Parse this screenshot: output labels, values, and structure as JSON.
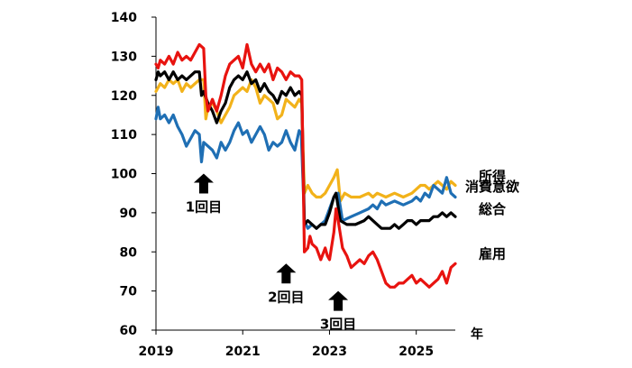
{
  "chart_data": {
    "type": "line",
    "title": "",
    "xlabel": "年",
    "ylabel": "",
    "xlim": [
      2019.0,
      2025.9
    ],
    "ylim": [
      60,
      140
    ],
    "y_ticks": [
      60,
      70,
      80,
      90,
      100,
      110,
      120,
      130,
      140
    ],
    "x_ticks": [
      {
        "value": 2019,
        "label": "2019"
      },
      {
        "value": 2021,
        "label": "2021"
      },
      {
        "value": 2023,
        "label": "2023"
      },
      {
        "value": 2025,
        "label": "2025"
      }
    ],
    "grid": false,
    "legend": "right (direct labels)",
    "series": [
      {
        "name": "所得",
        "color": "#f2b21a",
        "points": [
          [
            2019.0,
            121
          ],
          [
            2019.1,
            123
          ],
          [
            2019.2,
            122
          ],
          [
            2019.3,
            124
          ],
          [
            2019.4,
            123
          ],
          [
            2019.5,
            124
          ],
          [
            2019.6,
            121
          ],
          [
            2019.7,
            123
          ],
          [
            2019.8,
            122
          ],
          [
            2019.9,
            123
          ],
          [
            2020.0,
            124
          ],
          [
            2020.1,
            124
          ],
          [
            2020.15,
            114
          ],
          [
            2020.2,
            117
          ],
          [
            2020.3,
            118
          ],
          [
            2020.4,
            116
          ],
          [
            2020.5,
            113
          ],
          [
            2020.6,
            115
          ],
          [
            2020.7,
            117
          ],
          [
            2020.8,
            120
          ],
          [
            2020.9,
            121
          ],
          [
            2021.0,
            122
          ],
          [
            2021.1,
            121
          ],
          [
            2021.2,
            124
          ],
          [
            2021.3,
            122
          ],
          [
            2021.4,
            118
          ],
          [
            2021.5,
            120
          ],
          [
            2021.6,
            119
          ],
          [
            2021.7,
            118
          ],
          [
            2021.8,
            114
          ],
          [
            2021.9,
            115
          ],
          [
            2022.0,
            119
          ],
          [
            2022.1,
            118
          ],
          [
            2022.2,
            117
          ],
          [
            2022.3,
            119
          ],
          [
            2022.36,
            118
          ],
          [
            2022.42,
            95
          ],
          [
            2022.5,
            97
          ],
          [
            2022.6,
            95
          ],
          [
            2022.7,
            94
          ],
          [
            2022.8,
            94
          ],
          [
            2022.9,
            95
          ],
          [
            2023.0,
            97
          ],
          [
            2023.1,
            99
          ],
          [
            2023.18,
            101
          ],
          [
            2023.25,
            93
          ],
          [
            2023.35,
            95
          ],
          [
            2023.5,
            94
          ],
          [
            2023.7,
            94
          ],
          [
            2023.9,
            95
          ],
          [
            2024.0,
            94
          ],
          [
            2024.1,
            95
          ],
          [
            2024.3,
            94
          ],
          [
            2024.5,
            95
          ],
          [
            2024.7,
            94
          ],
          [
            2024.9,
            95
          ],
          [
            2025.0,
            96
          ],
          [
            2025.1,
            97
          ],
          [
            2025.2,
            97
          ],
          [
            2025.3,
            96
          ],
          [
            2025.4,
            97
          ],
          [
            2025.5,
            98
          ],
          [
            2025.6,
            97
          ],
          [
            2025.7,
            96
          ],
          [
            2025.8,
            98
          ],
          [
            2025.9,
            97
          ]
        ]
      },
      {
        "name": "消費意欲",
        "color": "#1f6fb4",
        "points": [
          [
            2019.0,
            114
          ],
          [
            2019.05,
            117
          ],
          [
            2019.1,
            114
          ],
          [
            2019.2,
            115
          ],
          [
            2019.3,
            113
          ],
          [
            2019.4,
            115
          ],
          [
            2019.5,
            112
          ],
          [
            2019.6,
            110
          ],
          [
            2019.7,
            107
          ],
          [
            2019.8,
            109
          ],
          [
            2019.9,
            111
          ],
          [
            2020.0,
            110
          ],
          [
            2020.05,
            103
          ],
          [
            2020.1,
            108
          ],
          [
            2020.2,
            107
          ],
          [
            2020.3,
            106
          ],
          [
            2020.4,
            104
          ],
          [
            2020.5,
            108
          ],
          [
            2020.6,
            106
          ],
          [
            2020.7,
            108
          ],
          [
            2020.8,
            111
          ],
          [
            2020.9,
            113
          ],
          [
            2021.0,
            110
          ],
          [
            2021.1,
            111
          ],
          [
            2021.2,
            108
          ],
          [
            2021.3,
            110
          ],
          [
            2021.4,
            112
          ],
          [
            2021.5,
            110
          ],
          [
            2021.6,
            106
          ],
          [
            2021.7,
            108
          ],
          [
            2021.8,
            107
          ],
          [
            2021.9,
            108
          ],
          [
            2022.0,
            111
          ],
          [
            2022.1,
            108
          ],
          [
            2022.2,
            106
          ],
          [
            2022.3,
            111
          ],
          [
            2022.35,
            110
          ],
          [
            2022.42,
            88
          ],
          [
            2022.5,
            86
          ],
          [
            2022.6,
            87
          ],
          [
            2022.7,
            86
          ],
          [
            2022.8,
            87
          ],
          [
            2022.9,
            88
          ],
          [
            2023.0,
            91
          ],
          [
            2023.1,
            94
          ],
          [
            2023.2,
            95
          ],
          [
            2023.3,
            88
          ],
          [
            2023.5,
            89
          ],
          [
            2023.7,
            90
          ],
          [
            2023.9,
            91
          ],
          [
            2024.0,
            92
          ],
          [
            2024.1,
            91
          ],
          [
            2024.2,
            93
          ],
          [
            2024.3,
            92
          ],
          [
            2024.5,
            93
          ],
          [
            2024.7,
            92
          ],
          [
            2024.9,
            93
          ],
          [
            2025.0,
            94
          ],
          [
            2025.1,
            93
          ],
          [
            2025.2,
            95
          ],
          [
            2025.3,
            94
          ],
          [
            2025.4,
            97
          ],
          [
            2025.5,
            96
          ],
          [
            2025.6,
            95
          ],
          [
            2025.7,
            99
          ],
          [
            2025.8,
            95
          ],
          [
            2025.9,
            94
          ]
        ]
      },
      {
        "name": "総合",
        "color": "#000000",
        "points": [
          [
            2019.0,
            124
          ],
          [
            2019.05,
            126
          ],
          [
            2019.1,
            125
          ],
          [
            2019.2,
            126
          ],
          [
            2019.3,
            124
          ],
          [
            2019.4,
            126
          ],
          [
            2019.5,
            124
          ],
          [
            2019.6,
            125
          ],
          [
            2019.7,
            124
          ],
          [
            2019.8,
            125
          ],
          [
            2019.9,
            126
          ],
          [
            2020.0,
            126
          ],
          [
            2020.05,
            120
          ],
          [
            2020.1,
            121
          ],
          [
            2020.2,
            118
          ],
          [
            2020.3,
            116
          ],
          [
            2020.4,
            113
          ],
          [
            2020.5,
            116
          ],
          [
            2020.6,
            118
          ],
          [
            2020.7,
            122
          ],
          [
            2020.8,
            124
          ],
          [
            2020.9,
            125
          ],
          [
            2021.0,
            124
          ],
          [
            2021.1,
            126
          ],
          [
            2021.2,
            123
          ],
          [
            2021.3,
            124
          ],
          [
            2021.4,
            121
          ],
          [
            2021.5,
            123
          ],
          [
            2021.6,
            121
          ],
          [
            2021.7,
            120
          ],
          [
            2021.8,
            118
          ],
          [
            2021.9,
            121
          ],
          [
            2022.0,
            120
          ],
          [
            2022.1,
            122
          ],
          [
            2022.2,
            120
          ],
          [
            2022.3,
            121
          ],
          [
            2022.36,
            120
          ],
          [
            2022.42,
            87
          ],
          [
            2022.5,
            88
          ],
          [
            2022.6,
            87
          ],
          [
            2022.7,
            86
          ],
          [
            2022.8,
            87
          ],
          [
            2022.9,
            87
          ],
          [
            2023.0,
            90
          ],
          [
            2023.1,
            94
          ],
          [
            2023.15,
            95
          ],
          [
            2023.25,
            88
          ],
          [
            2023.4,
            87
          ],
          [
            2023.6,
            87
          ],
          [
            2023.8,
            88
          ],
          [
            2023.9,
            89
          ],
          [
            2024.0,
            88
          ],
          [
            2024.1,
            87
          ],
          [
            2024.2,
            86
          ],
          [
            2024.4,
            86
          ],
          [
            2024.5,
            87
          ],
          [
            2024.6,
            86
          ],
          [
            2024.7,
            87
          ],
          [
            2024.8,
            88
          ],
          [
            2024.9,
            88
          ],
          [
            2025.0,
            87
          ],
          [
            2025.1,
            88
          ],
          [
            2025.3,
            88
          ],
          [
            2025.4,
            89
          ],
          [
            2025.5,
            89
          ],
          [
            2025.6,
            90
          ],
          [
            2025.7,
            89
          ],
          [
            2025.8,
            90
          ],
          [
            2025.9,
            89
          ]
        ]
      },
      {
        "name": "雇用",
        "color": "#e8130f",
        "points": [
          [
            2019.0,
            128
          ],
          [
            2019.05,
            127
          ],
          [
            2019.1,
            129
          ],
          [
            2019.2,
            128
          ],
          [
            2019.3,
            130
          ],
          [
            2019.4,
            128
          ],
          [
            2019.5,
            131
          ],
          [
            2019.6,
            129
          ],
          [
            2019.7,
            130
          ],
          [
            2019.8,
            129
          ],
          [
            2019.9,
            131
          ],
          [
            2020.0,
            133
          ],
          [
            2020.1,
            132
          ],
          [
            2020.15,
            120
          ],
          [
            2020.2,
            116
          ],
          [
            2020.3,
            119
          ],
          [
            2020.4,
            116
          ],
          [
            2020.5,
            120
          ],
          [
            2020.6,
            125
          ],
          [
            2020.7,
            128
          ],
          [
            2020.8,
            129
          ],
          [
            2020.9,
            130
          ],
          [
            2021.0,
            127
          ],
          [
            2021.1,
            133
          ],
          [
            2021.2,
            128
          ],
          [
            2021.3,
            126
          ],
          [
            2021.4,
            128
          ],
          [
            2021.5,
            126
          ],
          [
            2021.6,
            128
          ],
          [
            2021.7,
            124
          ],
          [
            2021.8,
            127
          ],
          [
            2021.9,
            126
          ],
          [
            2022.0,
            124
          ],
          [
            2022.1,
            126
          ],
          [
            2022.2,
            125
          ],
          [
            2022.3,
            125
          ],
          [
            2022.36,
            124
          ],
          [
            2022.42,
            80
          ],
          [
            2022.5,
            81
          ],
          [
            2022.55,
            84
          ],
          [
            2022.6,
            82
          ],
          [
            2022.7,
            81
          ],
          [
            2022.8,
            78
          ],
          [
            2022.9,
            81
          ],
          [
            2022.95,
            79
          ],
          [
            2023.0,
            78
          ],
          [
            2023.1,
            85
          ],
          [
            2023.15,
            91
          ],
          [
            2023.2,
            88
          ],
          [
            2023.3,
            81
          ],
          [
            2023.4,
            79
          ],
          [
            2023.5,
            76
          ],
          [
            2023.6,
            77
          ],
          [
            2023.7,
            78
          ],
          [
            2023.8,
            77
          ],
          [
            2023.9,
            79
          ],
          [
            2024.0,
            80
          ],
          [
            2024.1,
            78
          ],
          [
            2024.2,
            75
          ],
          [
            2024.3,
            72
          ],
          [
            2024.4,
            71
          ],
          [
            2024.5,
            71
          ],
          [
            2024.6,
            72
          ],
          [
            2024.7,
            72
          ],
          [
            2024.8,
            73
          ],
          [
            2024.9,
            74
          ],
          [
            2025.0,
            72
          ],
          [
            2025.1,
            73
          ],
          [
            2025.2,
            72
          ],
          [
            2025.3,
            71
          ],
          [
            2025.4,
            72
          ],
          [
            2025.5,
            73
          ],
          [
            2025.6,
            75
          ],
          [
            2025.7,
            72
          ],
          [
            2025.8,
            76
          ],
          [
            2025.9,
            77
          ]
        ]
      }
    ],
    "series_labels": [
      {
        "series": "所得",
        "text": "所得"
      },
      {
        "series": "消費意欲",
        "text": "消費意欲"
      },
      {
        "series": "総合",
        "text": "総合"
      },
      {
        "series": "雇用",
        "text": "雇用"
      }
    ],
    "annotations": [
      {
        "text": "1回目",
        "x": 2020.1,
        "arrow_tip_y": 100
      },
      {
        "text": "2回目",
        "x": 2022.0,
        "arrow_tip_y": 77
      },
      {
        "text": "3回目",
        "x": 2023.2,
        "arrow_tip_y": 70
      }
    ]
  }
}
